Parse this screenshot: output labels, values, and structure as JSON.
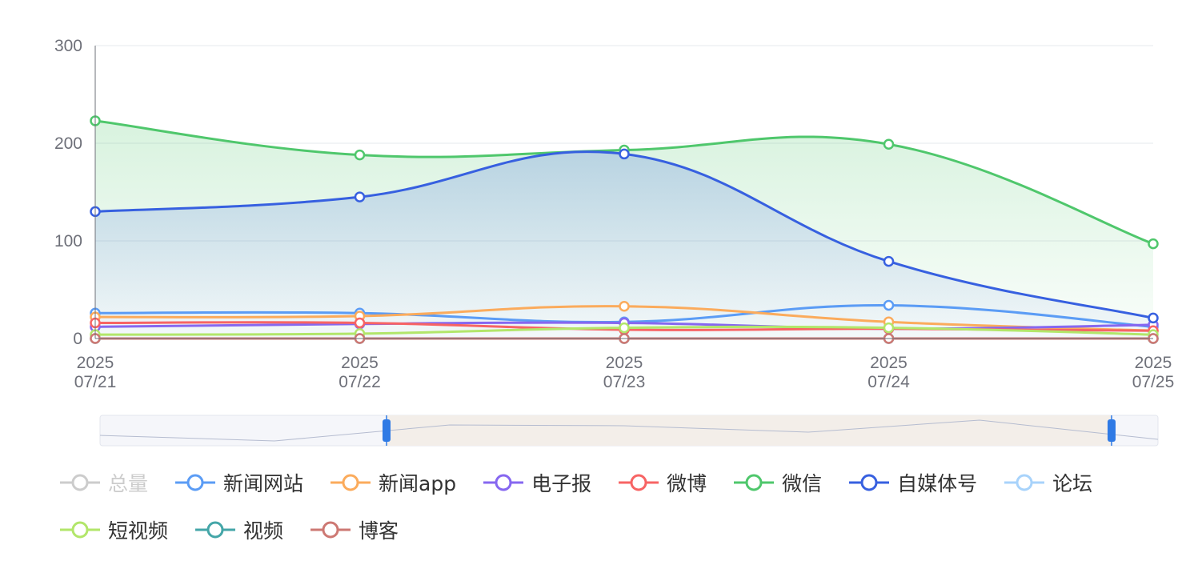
{
  "chart_data": {
    "type": "line",
    "categories": [
      "2025\n07/21",
      "2025\n07/22",
      "2025\n07/23",
      "2025\n07/24",
      "2025\n07/25"
    ],
    "ylim": [
      0,
      300
    ],
    "yticks": [
      0,
      100,
      200,
      300
    ],
    "grid": true,
    "smooth": true,
    "legend": "bottom",
    "series": [
      {
        "name": "总量",
        "color": "#cccccc",
        "visible": false,
        "values": [
          null,
          null,
          null,
          null,
          null
        ]
      },
      {
        "name": "新闻网站",
        "color": "#5b9cf5",
        "values": [
          26,
          26,
          17,
          34,
          12
        ]
      },
      {
        "name": "新闻app",
        "color": "#fbab5c",
        "values": [
          22,
          23,
          33,
          17,
          8
        ]
      },
      {
        "name": "电子报",
        "color": "#8667f0",
        "values": [
          12,
          15,
          16,
          10,
          14
        ]
      },
      {
        "name": "微博",
        "color": "#f76464",
        "values": [
          16,
          16,
          9,
          10,
          8
        ]
      },
      {
        "name": "微信",
        "color": "#4fc76c",
        "area": true,
        "values": [
          223,
          188,
          193,
          199,
          97
        ]
      },
      {
        "name": "自媒体号",
        "color": "#3760e0",
        "area": true,
        "values": [
          130,
          145,
          189,
          79,
          21
        ]
      },
      {
        "name": "论坛",
        "color": "#a8d3fb",
        "values": [
          0,
          0,
          0,
          0,
          0
        ]
      },
      {
        "name": "短视频",
        "color": "#b2e66a",
        "values": [
          4,
          5,
          11,
          11,
          4
        ]
      },
      {
        "name": "视频",
        "color": "#44a6a8",
        "values": [
          0,
          0,
          0,
          0,
          0
        ]
      },
      {
        "name": "博客",
        "color": "#cd7873",
        "values": [
          0,
          0,
          0,
          0,
          0
        ]
      }
    ]
  }
}
